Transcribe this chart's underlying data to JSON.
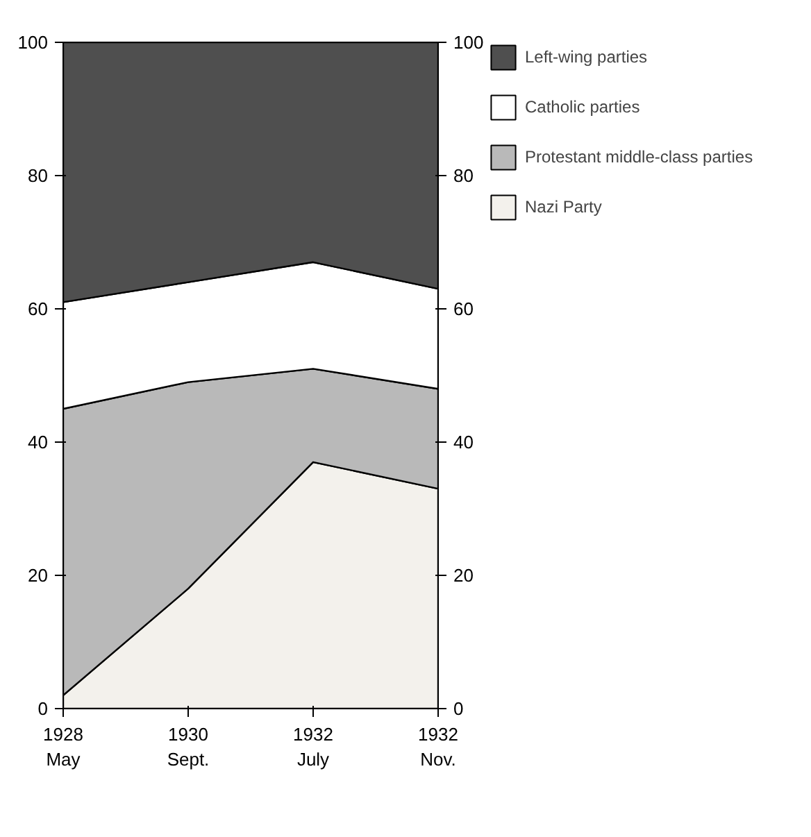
{
  "chart_data": {
    "type": "area",
    "stacked": true,
    "categories": [
      "1928\nMay",
      "1930\nSept.",
      "1932\nJuly",
      "1932\nNov."
    ],
    "series": [
      {
        "name": "Nazi Party",
        "color": "#f3f1ec",
        "values": [
          2,
          18,
          37,
          33
        ]
      },
      {
        "name": "Protestant middle-class parties",
        "color": "#b9b9b9",
        "values": [
          43,
          31,
          14,
          15
        ]
      },
      {
        "name": "Catholic parties",
        "color": "#ffffff",
        "values": [
          16,
          15,
          16,
          15
        ]
      },
      {
        "name": "Left-wing parties",
        "color": "#4f4f4f",
        "values": [
          39,
          36,
          33,
          37
        ]
      }
    ],
    "ylim": [
      0,
      100
    ],
    "yticks": [
      0,
      20,
      40,
      60,
      80,
      100
    ],
    "y2lim": [
      0,
      100
    ],
    "y2ticks": [
      0,
      20,
      40,
      60,
      80,
      100
    ],
    "legend": "right"
  }
}
